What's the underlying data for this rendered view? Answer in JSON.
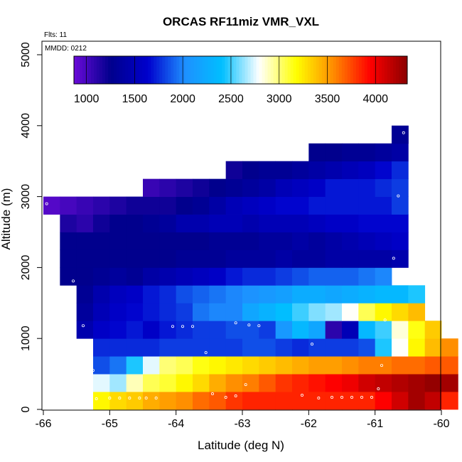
{
  "chart_data": {
    "type": "heatmap",
    "title": "ORCAS RF11miz VMR_VXL",
    "xlabel": "Latitude (deg N)",
    "ylabel": "Altitude (m)",
    "xlim": [
      -66,
      -60
    ],
    "ylim": [
      0,
      5200
    ],
    "x_ticks": [
      -66,
      -65,
      -64,
      -63,
      -62,
      -61,
      -60
    ],
    "y_ticks": [
      0,
      1000,
      2000,
      3000,
      4000,
      5000
    ],
    "annotations": {
      "flights": "Flts: 11",
      "date": "MMDD: 0212"
    },
    "cell_size": {
      "lat": 0.25,
      "alt": 250
    },
    "colorbar": {
      "range": [
        870,
        4330
      ],
      "ticks": [
        1000,
        1500,
        2000,
        2500,
        3000,
        3500,
        4000
      ],
      "palette": [
        "#6a0ad8",
        "#00008c",
        "#0000cd",
        "#1e90ff",
        "#00bfff",
        "#ffffff",
        "#ffff00",
        "#ff8c00",
        "#ff0000",
        "#8b0000"
      ]
    },
    "rows": [
      {
        "alt_lo": 0,
        "lat_start": -65.25,
        "values": [
          3200,
          3300,
          3350,
          3450,
          3500,
          3550,
          3650,
          3700,
          3800,
          3850,
          3850,
          3850,
          3850,
          3850,
          3850,
          3850,
          3850,
          3950,
          4100,
          4250,
          4150,
          3850
        ]
      },
      {
        "alt_lo": 250,
        "lat_start": -65.25,
        "values": [
          2750,
          2650,
          2900,
          3050,
          3100,
          3200,
          3300,
          3450,
          3550,
          3600,
          3700,
          3800,
          3850,
          3900,
          3950,
          4000,
          4100,
          4150,
          4200,
          4250,
          4300,
          4250
        ]
      },
      {
        "alt_lo": 500,
        "lat_start": -65.25,
        "values": [
          1850,
          1950,
          2450,
          2750,
          3000,
          3050,
          3150,
          3200,
          3250,
          3300,
          3350,
          3400,
          3450,
          3500,
          3500,
          3550,
          3600,
          3600,
          3650,
          3650,
          3700,
          3700
        ]
      },
      {
        "alt_lo": 750,
        "lat_start": -65.25,
        "values": [
          1750,
          1750,
          1750,
          1750,
          1800,
          1800,
          1800,
          1800,
          1800,
          1850,
          1850,
          1800,
          1750,
          1800,
          1800,
          1800,
          1850,
          2450,
          2800,
          3200,
          3400,
          3550
        ]
      },
      {
        "alt_lo": 1000,
        "lat_start": -65.5,
        "values": [
          1450,
          1600,
          1650,
          1700,
          1600,
          1700,
          1750,
          1800,
          1800,
          1850,
          1850,
          1800,
          2100,
          2350,
          2200,
          1100,
          1500,
          2350,
          2500,
          2850,
          3150,
          3350
        ]
      },
      {
        "alt_lo": 1250,
        "lat_start": -65.5,
        "values": [
          1350,
          1500,
          1600,
          1650,
          1700,
          1750,
          1800,
          1950,
          2000,
          2000,
          2200,
          2300,
          2400,
          2500,
          2600,
          2650,
          2800,
          3050,
          3200,
          3300,
          3400
        ]
      },
      {
        "alt_lo": 1500,
        "lat_start": -65.5,
        "values": [
          1300,
          1450,
          1550,
          1600,
          1700,
          1750,
          1850,
          1900,
          1950,
          2000,
          2050,
          2100,
          2150,
          2250,
          2250,
          2200,
          2250,
          2300,
          2350,
          2350,
          2450
        ]
      },
      {
        "alt_lo": 1750,
        "lat_start": -65.75,
        "values": [
          1250,
          1250,
          1300,
          1350,
          1300,
          1400,
          1450,
          1500,
          1550,
          1600,
          1700,
          1750,
          1750,
          1800,
          1850,
          1900,
          1900,
          1900,
          1950,
          2000
        ]
      },
      {
        "alt_lo": 2000,
        "lat_start": -65.75,
        "values": [
          1250,
          1250,
          1250,
          1250,
          1250,
          1250,
          1250,
          1300,
          1300,
          1300,
          1350,
          1350,
          1350,
          1400,
          1350,
          1350,
          1400,
          1400,
          1400,
          1400,
          1450
        ]
      },
      {
        "alt_lo": 2250,
        "lat_start": -65.75,
        "values": [
          1250,
          1250,
          1250,
          1250,
          1250,
          1250,
          1250,
          1250,
          1250,
          1300,
          1300,
          1300,
          1350,
          1350,
          1400,
          1350,
          1400,
          1450,
          1500,
          1550,
          1600
        ]
      },
      {
        "alt_lo": 2500,
        "lat_start": -65.75,
        "values": [
          1150,
          1100,
          1200,
          1250,
          1250,
          1300,
          1350,
          1450,
          1450,
          1500,
          1500,
          1450,
          1500,
          1500,
          1500,
          1550,
          1600,
          1600,
          1650,
          1650,
          1650
        ]
      },
      {
        "alt_lo": 2750,
        "lat_start": -66.0,
        "values": [
          950,
          1000,
          1050,
          1100,
          1150,
          1200,
          1200,
          1200,
          1250,
          1300,
          1400,
          1500,
          1550,
          1600,
          1650,
          1650,
          1700,
          1700,
          1700,
          1700,
          1700,
          1800
        ]
      },
      {
        "alt_lo": 3000,
        "lat_start": -64.5,
        "values": [
          1050,
          1100,
          1150,
          1200,
          1250,
          1300,
          1350,
          1400,
          1500,
          1550,
          1600,
          1700,
          1700,
          1700,
          1750,
          1800
        ]
      },
      {
        "alt_lo": 3250,
        "lat_start": -63.25,
        "values": [
          1200,
          1250,
          1300,
          1300,
          1350,
          1400,
          1450,
          1500,
          1550,
          1650,
          1750
        ]
      },
      {
        "alt_lo": 3500,
        "lat_start": -62.0,
        "values": [
          1250,
          1250,
          1300,
          1300,
          1350,
          1400
        ]
      },
      {
        "alt_lo": 3750,
        "lat_start": -60.75,
        "values": [
          1300
        ]
      },
      {
        "alt_lo": 3750,
        "lat_start": -60.75,
        "values": [
          1300
        ]
      }
    ],
    "points": [
      [
        -65.2,
        150
      ],
      [
        -65.0,
        160
      ],
      [
        -64.85,
        160
      ],
      [
        -64.7,
        160
      ],
      [
        -64.55,
        160
      ],
      [
        -64.45,
        160
      ],
      [
        -64.3,
        160
      ],
      [
        -63.45,
        220
      ],
      [
        -63.25,
        170
      ],
      [
        -63.1,
        190
      ],
      [
        -62.95,
        350
      ],
      [
        -62.1,
        200
      ],
      [
        -61.85,
        160
      ],
      [
        -61.65,
        170
      ],
      [
        -61.5,
        170
      ],
      [
        -61.35,
        170
      ],
      [
        -61.2,
        170
      ],
      [
        -61.05,
        170
      ],
      [
        -60.95,
        290
      ],
      [
        -60.9,
        620
      ],
      [
        -65.25,
        550
      ],
      [
        -63.55,
        800
      ],
      [
        -61.95,
        920
      ],
      [
        -65.4,
        1180
      ],
      [
        -64.05,
        1170
      ],
      [
        -63.9,
        1170
      ],
      [
        -63.75,
        1170
      ],
      [
        -63.1,
        1220
      ],
      [
        -62.9,
        1190
      ],
      [
        -62.75,
        1180
      ],
      [
        -60.85,
        1260
      ],
      [
        -65.55,
        1810
      ],
      [
        -60.72,
        2130
      ],
      [
        -65.8,
        2430
      ],
      [
        -65.95,
        2900
      ],
      [
        -60.65,
        3010
      ],
      [
        -60.57,
        3900
      ]
    ]
  }
}
